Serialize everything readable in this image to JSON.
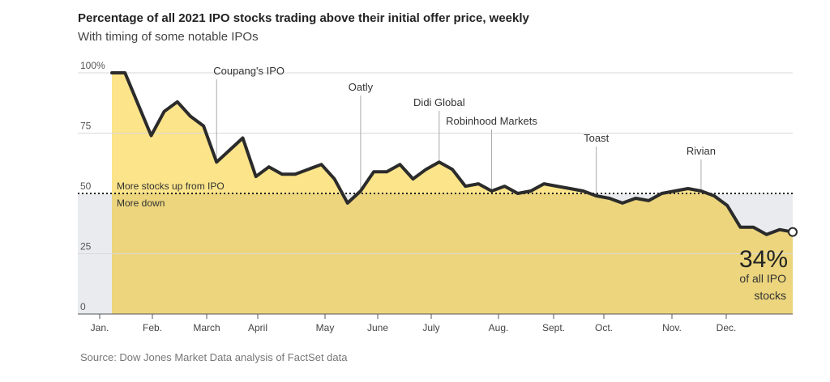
{
  "page": {
    "title": "Percentage of all 2021 IPO stocks trading above their initial offer price, weekly",
    "subtitle": "With timing of some notable IPOs",
    "source": "Source: Dow Jones Market Data analysis of FactSet data"
  },
  "chart_data": {
    "type": "area",
    "title": "Percentage of all 2021 IPO stocks trading above their initial offer price, weekly",
    "subtitle": "With timing of some notable IPOs",
    "xlabel": "",
    "ylabel": "",
    "ylim": [
      0,
      100
    ],
    "y_ticks": [
      {
        "value": 100,
        "label": "100%"
      },
      {
        "value": 75,
        "label": "75"
      },
      {
        "value": 50,
        "label": "50"
      },
      {
        "value": 25,
        "label": "25"
      },
      {
        "value": 0,
        "label": "0"
      }
    ],
    "x_ticks": [
      "Jan.",
      "Feb.",
      "March",
      "April",
      "May",
      "June",
      "July",
      "Aug.",
      "Sept.",
      "Oct.",
      "Nov.",
      "Dec."
    ],
    "grid": true,
    "reference_line": {
      "value": 50,
      "label_above": "More stocks up from IPO",
      "label_below": "More down"
    },
    "series": [
      {
        "values": [
          100,
          100,
          87,
          74,
          84,
          88,
          82,
          78,
          63,
          68,
          73,
          57,
          61,
          58,
          58,
          60,
          62,
          56,
          46,
          51,
          59,
          59,
          62,
          56,
          60,
          63,
          60,
          53,
          54,
          51,
          53,
          50,
          51,
          54,
          53,
          52,
          51,
          49,
          48,
          46,
          48,
          47,
          50,
          51,
          52,
          51,
          49,
          45,
          36,
          36,
          33,
          35,
          34
        ]
      }
    ],
    "annotations": [
      {
        "label": "Coupang's IPO",
        "week": 8
      },
      {
        "label": "Oatly",
        "week": 19
      },
      {
        "label": "Didi Global",
        "week": 25
      },
      {
        "label": "Robinhood Markets",
        "week": 29
      },
      {
        "label": "Toast",
        "week": 37
      },
      {
        "label": "Rivian",
        "week": 45
      }
    ],
    "end_label": {
      "value": "34%",
      "text_line1": "of all IPO",
      "text_line2": "stocks"
    },
    "colors": {
      "line": "#2b2b2b",
      "fill_above": "#fbe48a",
      "fill_below": "#ecd57d",
      "shade_below": "#e9ebee",
      "grid": "#d9d9d9"
    }
  }
}
